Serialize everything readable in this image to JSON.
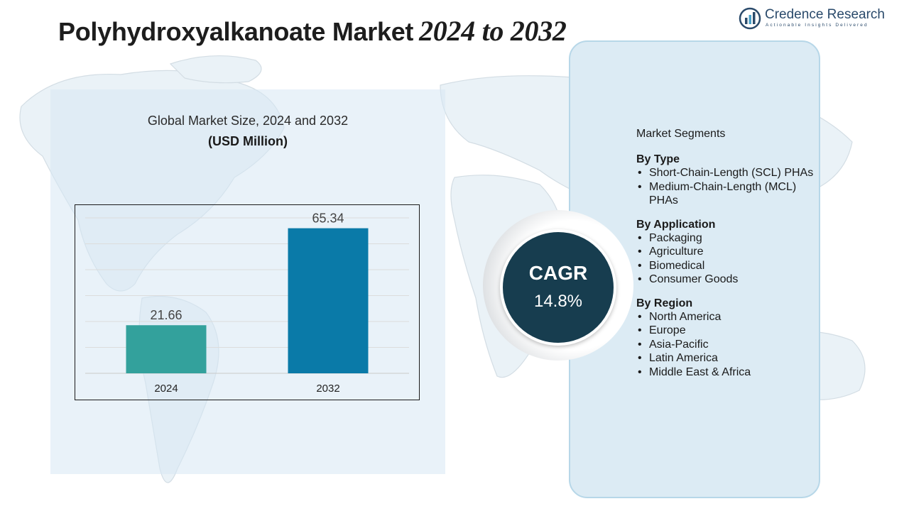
{
  "header": {
    "title_main": "Polyhydroxyalkanoate Market",
    "title_years": "2024 to 2032"
  },
  "logo": {
    "name": "Credence Research",
    "tagline": "Actionable Insights Delivered"
  },
  "chart_panel": {
    "title": "Global Market Size, 2024 and 2032",
    "unit": "(USD Million)"
  },
  "chart_data": {
    "type": "bar",
    "categories": [
      "2024",
      "2032"
    ],
    "values": [
      21.66,
      65.34
    ],
    "value_labels": [
      "21.66",
      "65.34"
    ],
    "title": "Global Market Size, 2024 and 2032",
    "ylabel": "",
    "xlabel": "",
    "ylim": [
      0,
      70
    ],
    "grid": true,
    "colors": [
      "#33a19c",
      "#0a7aa8"
    ]
  },
  "cagr": {
    "label": "CAGR",
    "value": "14.8%"
  },
  "segments": {
    "heading": "Market Segments",
    "groups": [
      {
        "title": "By Type",
        "items": [
          "Short-Chain-Length (SCL) PHAs",
          "Medium-Chain-Length (MCL) PHAs"
        ]
      },
      {
        "title": "By Application",
        "items": [
          "Packaging",
          "Agriculture",
          "Biomedical",
          "Consumer Goods"
        ]
      },
      {
        "title": "By Region",
        "items": [
          "North America",
          "Europe",
          "Asia-Pacific",
          "Latin America",
          "Middle East & Africa"
        ]
      }
    ]
  },
  "colors": {
    "panel_left": "#d7e8f4",
    "panel_right": "#dcebf4",
    "cagr_circle": "#173d4f",
    "brand": "#2a4a6b"
  }
}
